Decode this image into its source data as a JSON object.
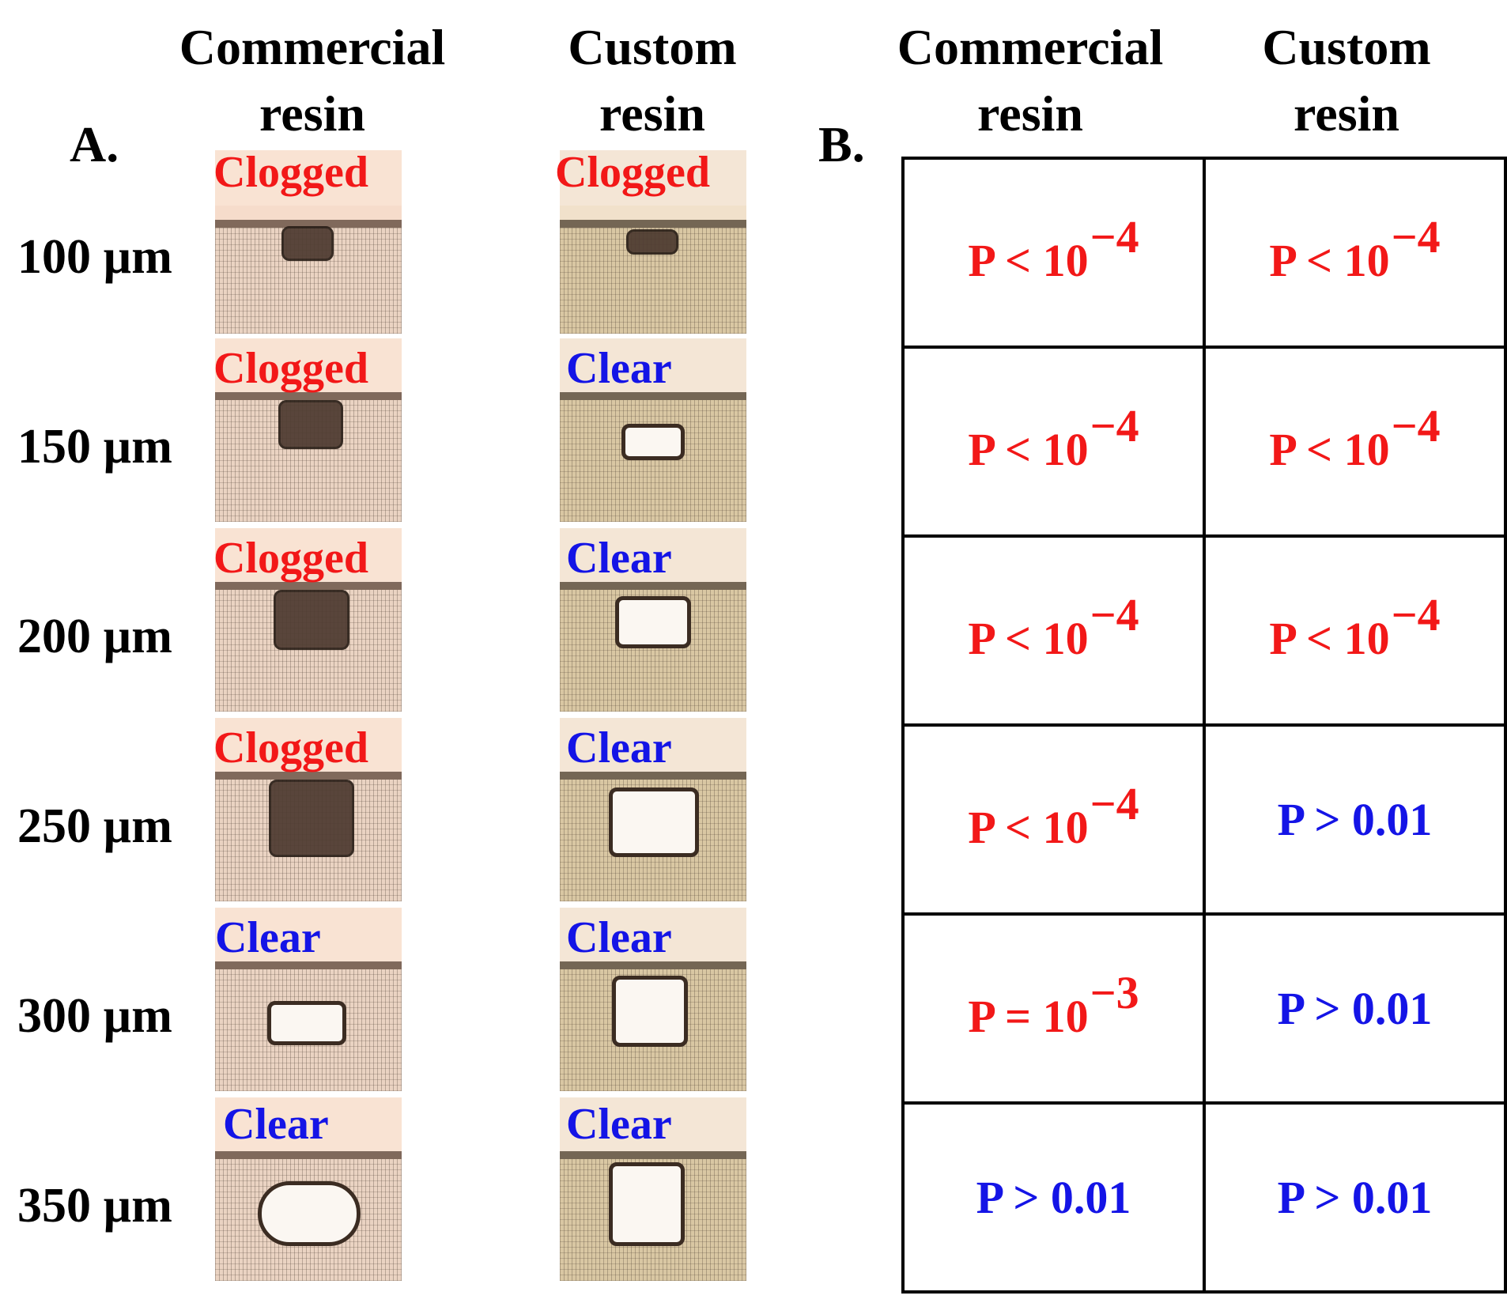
{
  "panel_a": {
    "label": "A.",
    "col_headers": [
      {
        "line1": "Commercial",
        "line2": "resin"
      },
      {
        "line1": "Custom",
        "line2": "resin"
      }
    ],
    "rows": [
      {
        "size": "100 µm",
        "commercial": "Clogged",
        "custom": "Clogged"
      },
      {
        "size": "150 µm",
        "commercial": "Clogged",
        "custom": "Clear"
      },
      {
        "size": "200 µm",
        "commercial": "Clogged",
        "custom": "Clear"
      },
      {
        "size": "250 µm",
        "commercial": "Clogged",
        "custom": "Clear"
      },
      {
        "size": "300 µm",
        "commercial": "Clear",
        "custom": "Clear"
      },
      {
        "size": "350 µm",
        "commercial": "Clear",
        "custom": "Clear"
      }
    ]
  },
  "panel_b": {
    "label": "B.",
    "col_headers": [
      {
        "line1": "Commercial",
        "line2": "resin"
      },
      {
        "line1": "Custom",
        "line2": "resin"
      }
    ],
    "rows": [
      {
        "commercial": {
          "base": "P < 10",
          "exp": "−4"
        },
        "custom": {
          "base": "P < 10",
          "exp": "−4"
        }
      },
      {
        "commercial": {
          "base": "P < 10",
          "exp": "−4"
        },
        "custom": {
          "base": "P < 10",
          "exp": "−4"
        }
      },
      {
        "commercial": {
          "base": "P < 10",
          "exp": "−4"
        },
        "custom": {
          "base": "P < 10",
          "exp": "−4"
        }
      },
      {
        "commercial": {
          "base": "P < 10",
          "exp": "−4"
        },
        "custom": {
          "base": "P > 0.01",
          "exp": ""
        }
      },
      {
        "commercial": {
          "base": "P = 10",
          "exp": "−3"
        },
        "custom": {
          "base": "P > 0.01",
          "exp": ""
        }
      },
      {
        "commercial": {
          "base": "P > 0.01",
          "exp": ""
        },
        "custom": {
          "base": "P > 0.01",
          "exp": ""
        }
      }
    ]
  },
  "colors": {
    "clogged": "#f21818",
    "clear": "#1414e6",
    "significant": "#f21818",
    "not_significant": "#1414e6"
  }
}
